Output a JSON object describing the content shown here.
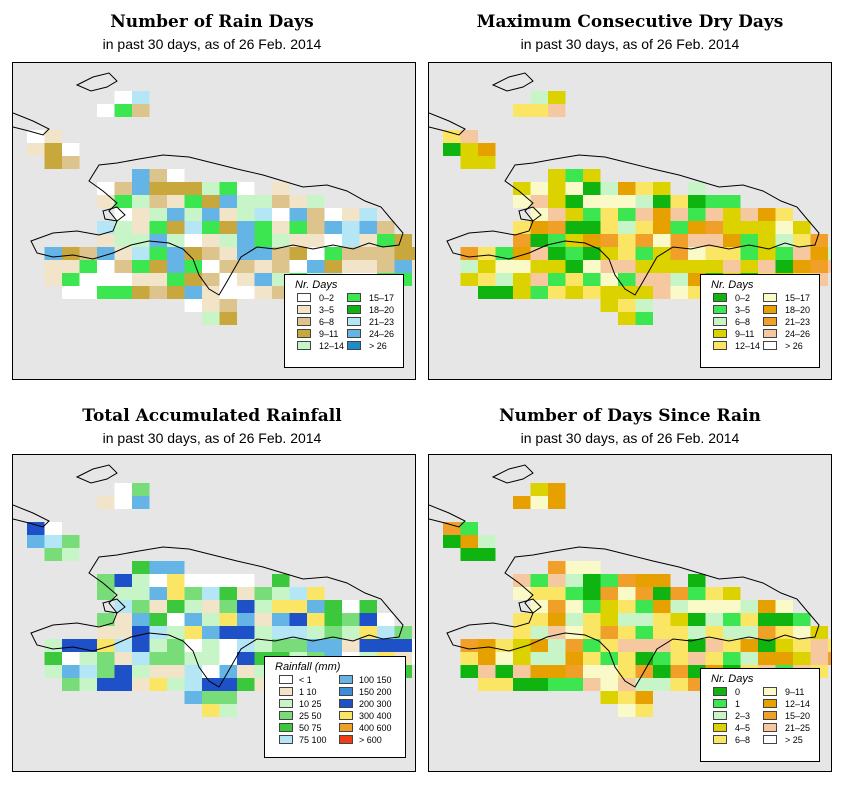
{
  "panels": [
    {
      "id": "rain-days",
      "title": "Number of Rain Days",
      "subtitle": "in past 30 days, as of  26 Feb. 2014",
      "legend": {
        "title": "Nr. Days",
        "left": [
          {
            "label": "0–2",
            "color": "#ffffff"
          },
          {
            "label": "3–5",
            "color": "#f2e4c8"
          },
          {
            "label": "6–8",
            "color": "#dcc48c"
          },
          {
            "label": "9–11",
            "color": "#c8a83c"
          },
          {
            "label": "12–14",
            "color": "#c8f5c8"
          }
        ],
        "right": [
          {
            "label": "15–17",
            "color": "#3ce650"
          },
          {
            "label": "18–20",
            "color": "#10b410"
          },
          {
            "label": "21–23",
            "color": "#b4e6f5"
          },
          {
            "label": "24–26",
            "color": "#64b4e6"
          },
          {
            "label": "> 26",
            "color": "#1e8cc8"
          }
        ]
      }
    },
    {
      "id": "max-dry",
      "title": "Maximum Consecutive Dry Days",
      "subtitle": "in past 30 days, as of  26 Feb. 2014",
      "legend": {
        "title": "Nr. Days",
        "left": [
          {
            "label": "0–2",
            "color": "#10b410"
          },
          {
            "label": "3–5",
            "color": "#3ce650"
          },
          {
            "label": "6–8",
            "color": "#c8f5c8"
          },
          {
            "label": "9–11",
            "color": "#dcd200"
          },
          {
            "label": "12–14",
            "color": "#fae664"
          }
        ],
        "right": [
          {
            "label": "15–17",
            "color": "#fafac8"
          },
          {
            "label": "18–20",
            "color": "#e6a000"
          },
          {
            "label": "21–23",
            "color": "#f0a028"
          },
          {
            "label": "24–26",
            "color": "#f5c8a0"
          },
          {
            "label": "> 26",
            "color": "#ffffff"
          }
        ]
      }
    },
    {
      "id": "total-rain",
      "title": "Total Accumulated Rainfall",
      "subtitle": "in past 30 days, as of  26 Feb. 2014",
      "legend": {
        "title": "Rainfall (mm)",
        "left": [
          {
            "label": "< 1",
            "color": "#ffffff"
          },
          {
            "label": "1     10",
            "color": "#f2e4c8"
          },
          {
            "label": "10     25",
            "color": "#c8f5c8"
          },
          {
            "label": "25     50",
            "color": "#78dc78"
          },
          {
            "label": "50     75",
            "color": "#3cc83c"
          },
          {
            "label": "75   100",
            "color": "#b4e6f5"
          }
        ],
        "right": [
          {
            "label": "100   150",
            "color": "#64b4e6"
          },
          {
            "label": "150   200",
            "color": "#3c8cdc"
          },
          {
            "label": "200   300",
            "color": "#1e50c8"
          },
          {
            "label": "300   400",
            "color": "#fae664"
          },
          {
            "label": "400   600",
            "color": "#f0a028"
          },
          {
            "label": "> 600",
            "color": "#f03c14"
          }
        ]
      }
    },
    {
      "id": "days-since",
      "title": "Number of Days Since Rain",
      "subtitle": "in past 30 days, as of  26 Feb. 2014",
      "legend": {
        "title": "Nr. Days",
        "left": [
          {
            "label": "0",
            "color": "#10b410"
          },
          {
            "label": "1",
            "color": "#3ce650"
          },
          {
            "label": "2–3",
            "color": "#c8f5c8"
          },
          {
            "label": "4–5",
            "color": "#dcd200"
          },
          {
            "label": "6–8",
            "color": "#fae664"
          }
        ],
        "right": [
          {
            "label": "9–11",
            "color": "#fafac8"
          },
          {
            "label": "12–14",
            "color": "#e6a000"
          },
          {
            "label": "15–20",
            "color": "#f0a028"
          },
          {
            "label": "21–25",
            "color": "#f5c8a0"
          },
          {
            "label": "> 25",
            "color": "#ffffff"
          }
        ]
      }
    }
  ],
  "colors": {
    "map_background": "#e6e6e6",
    "coastline": "#000000"
  }
}
